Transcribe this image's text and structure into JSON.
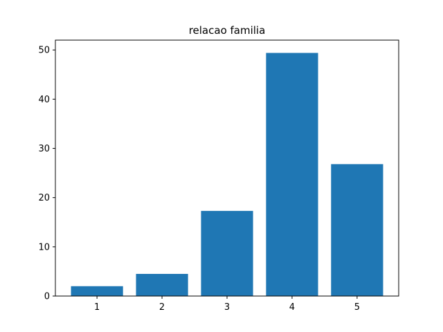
{
  "chart_data": {
    "type": "bar",
    "title": "relacao familia",
    "xlabel": "",
    "ylabel": "",
    "categories": [
      "1",
      "2",
      "3",
      "4",
      "5"
    ],
    "values": [
      2.0,
      4.5,
      17.3,
      49.4,
      26.8
    ],
    "y_ticks": [
      "0",
      "10",
      "20",
      "30",
      "40",
      "50"
    ],
    "ylim": [
      0,
      52
    ],
    "bar_color": "#1f77b4",
    "grid": false,
    "legend": "none"
  }
}
